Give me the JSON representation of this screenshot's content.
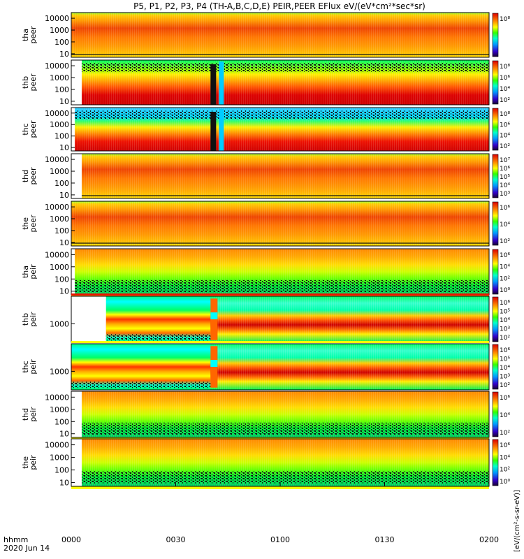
{
  "figure": {
    "title": "P5, P1, P2, P3, P4 (TH-A,B,C,D,E) PEIR,PEER EFlux eV/(eV*cm²*sec*sr)",
    "x_axis_label": "hhmm",
    "date_label": "2020 Jun 14",
    "x_ticks": [
      "0000",
      "0030",
      "0100",
      "0130",
      "0200"
    ],
    "colorbar_label": "[eV/(cm²-s-sr-eV)]"
  },
  "colors": {
    "low": "#00ff55",
    "mid": "#ffaa00",
    "high": "#ee2200",
    "peak": "#cc0000",
    "noise": "#111111"
  },
  "chart_data": [
    {
      "type": "heatmap",
      "panel": "tha_peer",
      "ylabel": [
        "tha",
        "peer"
      ],
      "yticks": [
        "10000",
        "1000",
        "100",
        "10"
      ],
      "yscale": "log",
      "ylim": [
        5,
        30000
      ],
      "x_range": [
        "0000",
        "0200"
      ],
      "colorbar_ticks": [
        "10⁸"
      ],
      "data_start": "0000",
      "style": "electron"
    },
    {
      "type": "heatmap",
      "panel": "thb_peer",
      "ylabel": [
        "thb",
        "peer"
      ],
      "yticks": [
        "10000",
        "1000",
        "100",
        "10"
      ],
      "yscale": "log",
      "ylim": [
        5,
        30000
      ],
      "x_range": [
        "0000",
        "0200"
      ],
      "colorbar_ticks": [
        "10⁸",
        "10⁶",
        "10⁴",
        "10²"
      ],
      "data_start": "0003",
      "style": "electron_b"
    },
    {
      "type": "heatmap",
      "panel": "thc_peer",
      "ylabel": [
        "thc",
        "peer"
      ],
      "yticks": [
        "10000",
        "1000",
        "100",
        "10"
      ],
      "yscale": "log",
      "ylim": [
        5,
        30000
      ],
      "x_range": [
        "0000",
        "0200"
      ],
      "colorbar_ticks": [
        "10⁸",
        "10⁶",
        "10⁴",
        "10²"
      ],
      "data_start": "0001",
      "style": "electron_c"
    },
    {
      "type": "heatmap",
      "panel": "thd_peer",
      "ylabel": [
        "thd",
        "peer"
      ],
      "yticks": [
        "10000",
        "1000",
        "100",
        "10"
      ],
      "yscale": "log",
      "ylim": [
        5,
        30000
      ],
      "x_range": [
        "0000",
        "0200"
      ],
      "colorbar_ticks": [
        "10⁷",
        "10⁶",
        "10⁵",
        "10⁴",
        "10³"
      ],
      "data_start": "0003",
      "style": "electron"
    },
    {
      "type": "heatmap",
      "panel": "the_peer",
      "ylabel": [
        "the",
        "peer"
      ],
      "yticks": [
        "10000",
        "1000",
        "100",
        "10"
      ],
      "yscale": "log",
      "ylim": [
        5,
        30000
      ],
      "x_range": [
        "0000",
        "0200"
      ],
      "colorbar_ticks": [
        "10⁶",
        "10⁴",
        "10²"
      ],
      "data_start": "0000",
      "style": "electron"
    },
    {
      "type": "heatmap",
      "panel": "tha_peir",
      "ylabel": [
        "tha",
        "peir"
      ],
      "yticks": [
        "10000",
        "1000",
        "100",
        "10"
      ],
      "yscale": "log",
      "ylim": [
        5,
        30000
      ],
      "x_range": [
        "0000",
        "0200"
      ],
      "colorbar_ticks": [
        "10⁶",
        "10⁴",
        "10²",
        "10⁰"
      ],
      "data_start": "0001",
      "style": "ion"
    },
    {
      "type": "heatmap",
      "panel": "thb_peir",
      "ylabel": [
        "thb",
        "peir"
      ],
      "yticks": [
        "1000"
      ],
      "yscale": "log",
      "ylim": [
        100,
        30000
      ],
      "x_range": [
        "0000",
        "0200"
      ],
      "colorbar_ticks": [
        "10⁶",
        "10⁵",
        "10⁴",
        "10³",
        "10²"
      ],
      "data_start": "0010",
      "style": "ion_b"
    },
    {
      "type": "heatmap",
      "panel": "thc_peir",
      "ylabel": [
        "thc",
        "peir"
      ],
      "yticks": [
        "1000"
      ],
      "yscale": "log",
      "ylim": [
        100,
        30000
      ],
      "x_range": [
        "0000",
        "0200"
      ],
      "colorbar_ticks": [
        "10⁶",
        "10⁵",
        "10⁴",
        "10³",
        "10²"
      ],
      "data_start": "0000",
      "style": "ion_c"
    },
    {
      "type": "heatmap",
      "panel": "thd_peir",
      "ylabel": [
        "thd",
        "peir"
      ],
      "yticks": [
        "10000",
        "1000",
        "100",
        "10"
      ],
      "yscale": "log",
      "ylim": [
        5,
        30000
      ],
      "x_range": [
        "0000",
        "0200"
      ],
      "colorbar_ticks": [
        "10⁶",
        "10⁴",
        "10²"
      ],
      "data_start": "0003",
      "style": "ion"
    },
    {
      "type": "heatmap",
      "panel": "the_peir",
      "ylabel": [
        "the",
        "peir"
      ],
      "yticks": [
        "10000",
        "1000",
        "100",
        "10"
      ],
      "yscale": "log",
      "ylim": [
        5,
        30000
      ],
      "x_range": [
        "0000",
        "0200"
      ],
      "colorbar_ticks": [
        "10⁶",
        "10⁴",
        "10²",
        "10⁰"
      ],
      "data_start": "0003",
      "style": "ion"
    }
  ]
}
